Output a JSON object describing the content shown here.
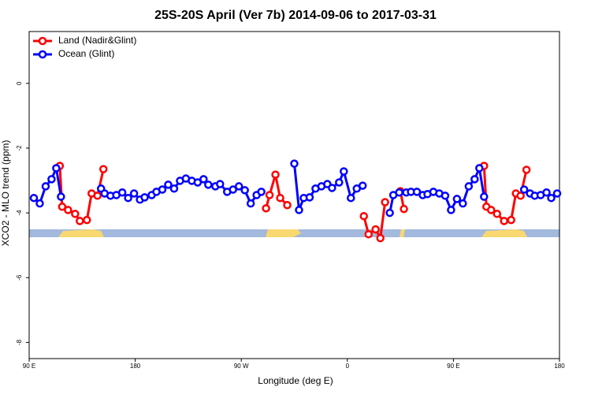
{
  "chart_data": {
    "type": "line",
    "title": "25S-20S April (Ver 7b)   2014-09-06 to 2017-03-31",
    "x_label": "Longitude (deg E)",
    "y_label": "XCO2 - MLO trend (ppm)",
    "xlim": [
      90,
      540
    ],
    "ylim": [
      -8.5,
      1.6
    ],
    "xticks": [
      {
        "value": 90,
        "label": "90 E"
      },
      180,
      {
        "value": 270,
        "label": "90 W"
      },
      {
        "value": 360,
        "label": "0"
      },
      {
        "value": 450,
        "label": "90 E"
      },
      {
        "value": 540,
        "label": "180"
      }
    ],
    "yticks": [
      0,
      -2,
      -4,
      -6,
      -8
    ],
    "legend": "top-left",
    "series": [
      {
        "name": "Land (Nadir&Glint)",
        "color": "#ff0000",
        "x": [
          116,
          118,
          123,
          129,
          133,
          139,
          143,
          148,
          153,
          null,
          291,
          294,
          299,
          303,
          309,
          null,
          374,
          378,
          384,
          388,
          392,
          null,
          405,
          408,
          null,
          476,
          478,
          482,
          487,
          493,
          499,
          503,
          507,
          512
        ],
        "values": [
          -2.55,
          -3.81,
          -3.91,
          -4.03,
          -4.25,
          -4.22,
          -3.4,
          -3.47,
          -2.65,
          null,
          -3.86,
          -3.45,
          -2.82,
          -3.54,
          -3.76,
          null,
          -4.1,
          -4.66,
          -4.51,
          -4.78,
          -3.67,
          null,
          -3.33,
          -3.88,
          null,
          -2.55,
          -3.81,
          -3.91,
          -4.03,
          -4.25,
          -4.22,
          -3.4,
          -3.47,
          -2.67
        ]
      },
      {
        "name": "Ocean (Glint)",
        "color": "#0000ff",
        "x": [
          94,
          99,
          104,
          109,
          113,
          117,
          null,
          151,
          154,
          159,
          164,
          169,
          174,
          179,
          184,
          188,
          194,
          198,
          203,
          208,
          213,
          218,
          223,
          228,
          233,
          238,
          242,
          248,
          252,
          258,
          263,
          268,
          273,
          278,
          283,
          287,
          null,
          315,
          319,
          323,
          328,
          333,
          338,
          343,
          347,
          353,
          357,
          363,
          368,
          373,
          null,
          396,
          399,
          404,
          null,
          410,
          414,
          419,
          424,
          428,
          433,
          438,
          443,
          448,
          453,
          458,
          463,
          468,
          472,
          476,
          null,
          510,
          515,
          519,
          524,
          529,
          533,
          538
        ],
        "values": [
          -3.54,
          -3.71,
          -3.18,
          -2.96,
          -2.62,
          -3.5,
          null,
          -3.25,
          -3.4,
          -3.47,
          -3.45,
          -3.37,
          -3.54,
          -3.4,
          -3.59,
          -3.52,
          -3.45,
          -3.35,
          -3.28,
          -3.13,
          -3.25,
          -3.01,
          -2.94,
          -3.01,
          -3.06,
          -2.96,
          -3.13,
          -3.18,
          -3.11,
          -3.35,
          -3.28,
          -3.18,
          -3.3,
          -3.71,
          -3.45,
          -3.35,
          null,
          -2.48,
          -3.91,
          -3.54,
          -3.52,
          -3.25,
          -3.18,
          -3.11,
          -3.23,
          -3.06,
          -2.72,
          -3.54,
          -3.25,
          -3.16,
          null,
          -4.0,
          -3.45,
          -3.37,
          null,
          -3.37,
          -3.35,
          -3.35,
          -3.45,
          -3.42,
          -3.35,
          -3.4,
          -3.47,
          -3.91,
          -3.57,
          -3.71,
          -3.18,
          -2.96,
          -2.62,
          -3.5,
          null,
          -3.28,
          -3.4,
          -3.47,
          -3.45,
          -3.37,
          -3.54,
          -3.4
        ]
      }
    ]
  }
}
